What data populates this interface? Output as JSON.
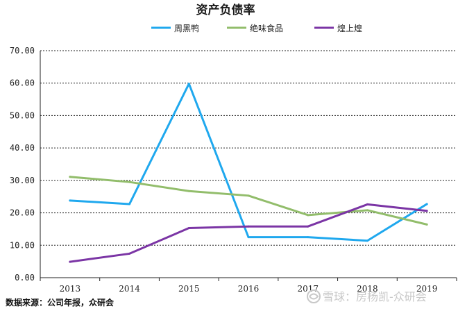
{
  "chart_data": {
    "type": "line",
    "title": "资产负债率",
    "categories": [
      "2013",
      "2014",
      "2015",
      "2016",
      "2017",
      "2018",
      "2019"
    ],
    "ylim": [
      0,
      70
    ],
    "yticks": [
      "0.00",
      "10.00",
      "20.00",
      "30.00",
      "40.00",
      "50.00",
      "60.00",
      "70.00"
    ],
    "grid": "horizontal",
    "legend": "top-center",
    "series": [
      {
        "name": "周黑鸭",
        "color": "#1fa8ee",
        "values": [
          23.8,
          22.7,
          59.8,
          12.5,
          12.5,
          11.4,
          22.7
        ]
      },
      {
        "name": "绝味食品",
        "color": "#92bd6b",
        "values": [
          31.1,
          29.5,
          26.7,
          25.3,
          19.3,
          20.8,
          16.4
        ]
      },
      {
        "name": "煌上煌",
        "color": "#7b35a5",
        "values": [
          4.9,
          7.4,
          15.3,
          15.8,
          15.8,
          22.6,
          20.6
        ]
      }
    ]
  },
  "footer": {
    "source": "数据来源：公司年报，众研会",
    "watermark": "雪球：房杨凯-众研会"
  }
}
